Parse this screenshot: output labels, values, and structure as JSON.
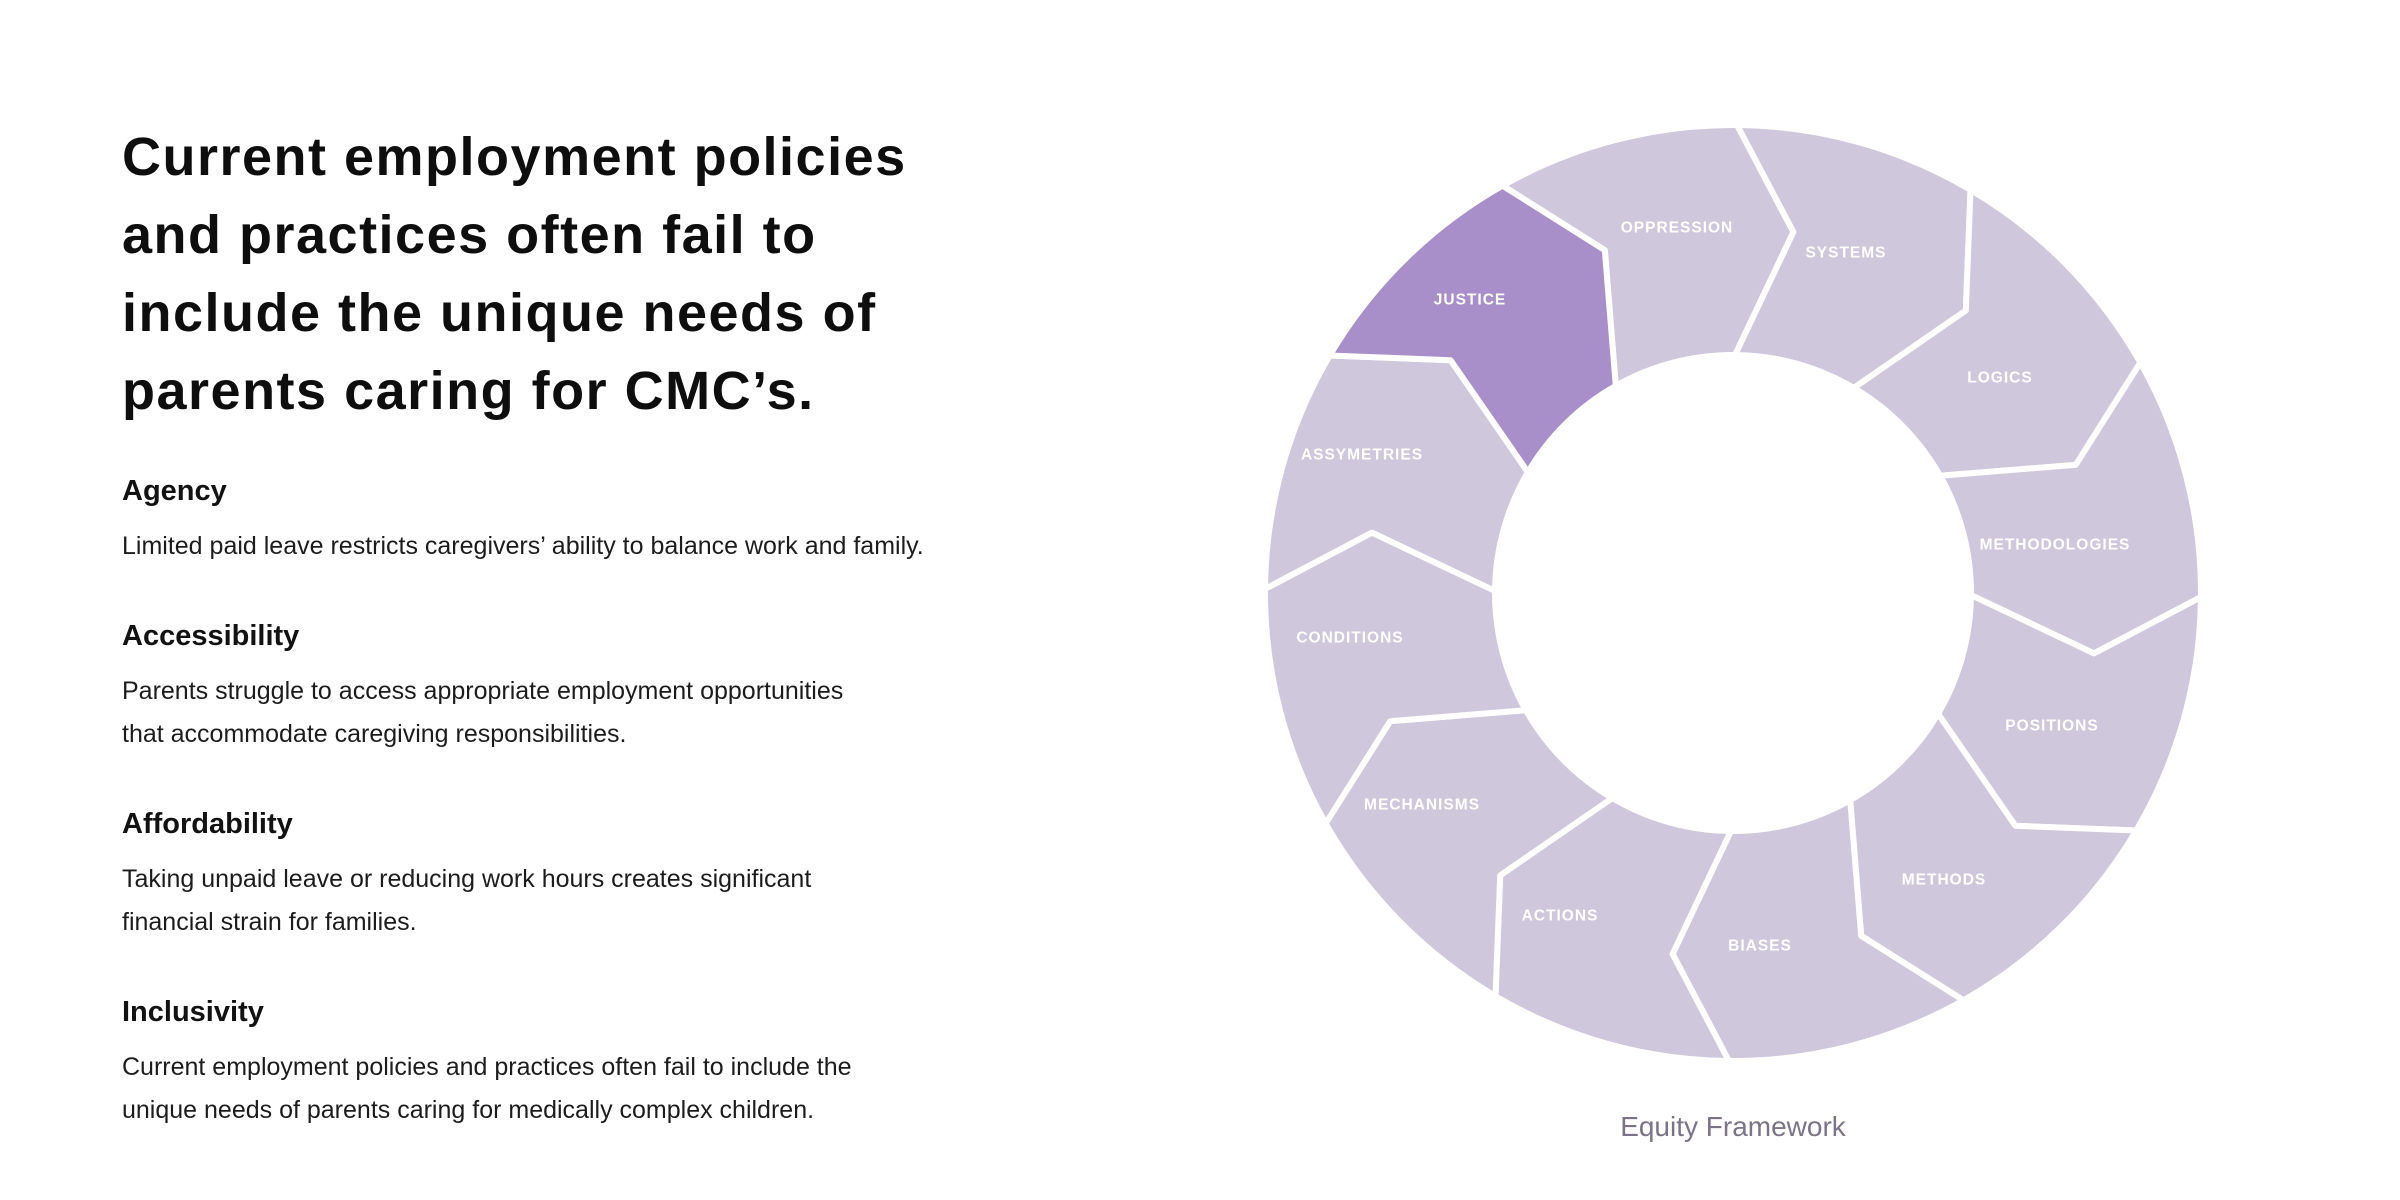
{
  "page": {
    "background": "#ffffff"
  },
  "left_panel": {
    "heading_lines": [
      "Current employment policies",
      "and practices often fail to",
      "include the unique needs of",
      "parents caring for CMC’s."
    ],
    "sections": [
      {
        "title": "Agency",
        "body_lines": [
          "Limited paid leave restricts caregivers’ ability to balance work and family."
        ]
      },
      {
        "title": "Accessibility",
        "body_lines": [
          "Parents struggle to access appropriate employment opportunities",
          "that accommodate caregiving responsibilities."
        ]
      },
      {
        "title": "Affordability",
        "body_lines": [
          "Taking unpaid leave or reducing work hours creates significant",
          "financial strain for families."
        ]
      },
      {
        "title": "Inclusivity",
        "body_lines": [
          "Current employment policies and practices often fail to include the",
          "unique needs of parents caring for medically complex children."
        ]
      }
    ]
  },
  "diagram": {
    "caption": "Equity Framework",
    "segments": [
      {
        "label": "OPPRESSION",
        "highlighted": false
      },
      {
        "label": "SYSTEMS",
        "highlighted": false
      },
      {
        "label": "LOGICS",
        "highlighted": false
      },
      {
        "label": "METHODOLOGIES",
        "highlighted": false
      },
      {
        "label": "POSITIONS",
        "highlighted": false
      },
      {
        "label": "METHODS",
        "highlighted": false
      },
      {
        "label": "BIASES",
        "highlighted": false
      },
      {
        "label": "ACTIONS",
        "highlighted": false
      },
      {
        "label": "MECHANISMS",
        "highlighted": false
      },
      {
        "label": "CONDITIONS",
        "highlighted": false
      },
      {
        "label": "ASSYMETRIES",
        "highlighted": false
      },
      {
        "label": "JUSTICE",
        "highlighted": true
      }
    ],
    "colors": {
      "segment": "#cfc7dc",
      "highlight": "#a98fc9",
      "label": "#ffffff",
      "gap": "#ffffff",
      "caption": "#7b7386"
    }
  }
}
